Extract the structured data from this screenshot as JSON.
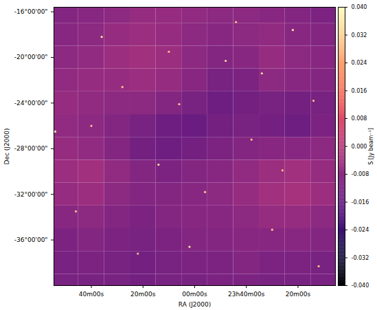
{
  "chart_data": {
    "type": "heatmap",
    "x_label": "RA (J2000)",
    "y_label": "Dec (J2000)",
    "color": "magma",
    "xlim": [
      54.5,
      -54.5
    ],
    "ylim": [
      -40,
      -15.6
    ],
    "xticks": [
      {
        "value": 40,
        "label": "40m00s"
      },
      {
        "value": 20,
        "label": "20m00s"
      },
      {
        "value": 0,
        "label": "00m00s"
      },
      {
        "value": -20,
        "label": "23h40m00s"
      },
      {
        "value": -40,
        "label": "20m00s"
      }
    ],
    "yticks": [
      {
        "value": -16,
        "label": "-16°00'00\""
      },
      {
        "value": -20,
        "label": "-20°00'00\""
      },
      {
        "value": -24,
        "label": "-24°00'00\""
      },
      {
        "value": -28,
        "label": "-28°00'00\""
      },
      {
        "value": -32,
        "label": "-32°00'00\""
      },
      {
        "value": -36,
        "label": "-36°00'00\""
      }
    ],
    "cells": {
      "x": [
        50,
        40,
        30,
        20,
        10,
        0,
        -10,
        -20,
        -30,
        -40,
        -50
      ],
      "y": [
        -16,
        -18,
        -20,
        -22,
        -24,
        -26,
        -28,
        -30,
        -32,
        -34,
        -36,
        -38,
        -40
      ],
      "values": [
        [
          -0.01,
          -0.009,
          -0.008,
          -0.006,
          -0.006,
          -0.007,
          -0.008,
          -0.008,
          -0.009,
          -0.01,
          -0.011
        ],
        [
          -0.009,
          -0.008,
          -0.006,
          -0.005,
          -0.006,
          -0.008,
          -0.009,
          -0.008,
          -0.007,
          -0.009,
          -0.01
        ],
        [
          -0.008,
          -0.007,
          -0.005,
          -0.004,
          -0.005,
          -0.008,
          -0.01,
          -0.009,
          -0.006,
          -0.008,
          -0.009
        ],
        [
          -0.007,
          -0.006,
          -0.006,
          -0.005,
          -0.006,
          -0.009,
          -0.012,
          -0.011,
          -0.008,
          -0.009,
          -0.01
        ],
        [
          -0.006,
          -0.007,
          -0.008,
          -0.008,
          -0.01,
          -0.012,
          -0.014,
          -0.013,
          -0.012,
          -0.013,
          -0.012
        ],
        [
          -0.007,
          -0.008,
          -0.01,
          -0.012,
          -0.014,
          -0.015,
          -0.013,
          -0.012,
          -0.013,
          -0.014,
          -0.011
        ],
        [
          -0.006,
          -0.007,
          -0.01,
          -0.013,
          -0.014,
          -0.013,
          -0.011,
          -0.01,
          -0.009,
          -0.009,
          -0.008
        ],
        [
          -0.005,
          -0.004,
          -0.007,
          -0.01,
          -0.011,
          -0.01,
          -0.009,
          -0.007,
          -0.005,
          -0.004,
          -0.006
        ],
        [
          -0.006,
          -0.005,
          -0.008,
          -0.01,
          -0.01,
          -0.009,
          -0.008,
          -0.006,
          -0.004,
          -0.003,
          -0.005
        ],
        [
          -0.009,
          -0.008,
          -0.01,
          -0.011,
          -0.01,
          -0.009,
          -0.009,
          -0.008,
          -0.006,
          -0.006,
          -0.008
        ],
        [
          -0.011,
          -0.01,
          -0.011,
          -0.012,
          -0.011,
          -0.01,
          -0.01,
          -0.009,
          -0.009,
          -0.009,
          -0.01
        ],
        [
          -0.012,
          -0.011,
          -0.012,
          -0.013,
          -0.012,
          -0.011,
          -0.011,
          -0.01,
          -0.011,
          -0.011,
          -0.012
        ],
        [
          -0.012,
          -0.012,
          -0.012,
          -0.013,
          -0.012,
          -0.012,
          -0.011,
          -0.011,
          -0.012,
          -0.012,
          -0.012
        ]
      ]
    },
    "sources": {
      "x": [
        54,
        36,
        28,
        14,
        6,
        -4,
        -12,
        -22,
        -30,
        -38,
        -46,
        46,
        22,
        2,
        -16,
        -34,
        40,
        10,
        -26,
        -48
      ],
      "y": [
        -26.5,
        -18.2,
        -22.6,
        -29.4,
        -24.1,
        -31.8,
        -20.3,
        -27.2,
        -35.1,
        -17.6,
        -23.8,
        -33.5,
        -37.2,
        -36.6,
        -16.9,
        -29.9,
        -26.0,
        -19.5,
        -21.4,
        -38.3
      ],
      "values": [
        0.04,
        0.035,
        0.03,
        0.035,
        0.03,
        0.03,
        0.035,
        0.03,
        0.03,
        0.035,
        0.03,
        0.03,
        0.03,
        0.035,
        0.03,
        0.03,
        0.03,
        0.03,
        0.035,
        0.03
      ]
    },
    "colorbar": {
      "label": "S [Jy beam⁻¹]",
      "range": [
        -0.04,
        0.04
      ],
      "ticks": [
        {
          "value": 0.04,
          "label": "0.040"
        },
        {
          "value": 0.032,
          "label": "0.032"
        },
        {
          "value": 0.024,
          "label": "0.024"
        },
        {
          "value": 0.016,
          "label": "0.016"
        },
        {
          "value": 0.008,
          "label": "0.008"
        },
        {
          "value": 0,
          "label": "0.000"
        },
        {
          "value": -0.008,
          "label": "-0.008"
        },
        {
          "value": -0.016,
          "label": "-0.016"
        },
        {
          "value": -0.024,
          "label": "-0.024"
        },
        {
          "value": -0.032,
          "label": "-0.032"
        },
        {
          "value": -0.04,
          "label": "-0.040"
        }
      ]
    }
  }
}
